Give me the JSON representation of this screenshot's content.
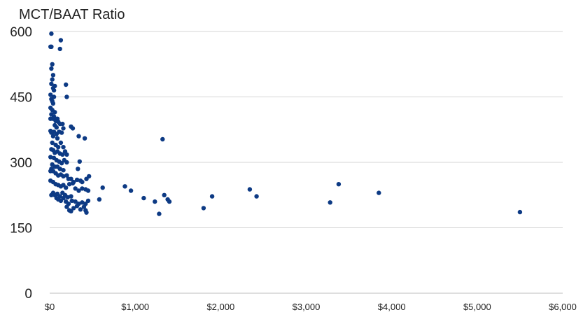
{
  "chart_data": {
    "type": "scatter",
    "title": "MCT/BAAT Ratio",
    "xlabel": "",
    "ylabel": "",
    "xlim": [
      0,
      6000
    ],
    "ylim": [
      0,
      600
    ],
    "x_ticks": [
      0,
      1000,
      2000,
      3000,
      4000,
      5000,
      6000
    ],
    "x_tick_labels": [
      "$0",
      "$1,000",
      "$2,000",
      "$3,000",
      "$4,000",
      "$5,000",
      "$6,000"
    ],
    "y_ticks": [
      0,
      150,
      300,
      450,
      600
    ],
    "y_tick_labels": [
      "0",
      "150",
      "300",
      "450",
      "600"
    ],
    "grid": "horizontal",
    "legend": "none",
    "marker_color": "#0d3a84",
    "series": [
      {
        "points": [
          [
            20,
            595
          ],
          [
            10,
            565
          ],
          [
            20,
            565
          ],
          [
            130,
            580
          ],
          [
            120,
            560
          ],
          [
            30,
            525
          ],
          [
            20,
            515
          ],
          [
            40,
            500
          ],
          [
            30,
            490
          ],
          [
            20,
            480
          ],
          [
            40,
            470
          ],
          [
            60,
            475
          ],
          [
            50,
            465
          ],
          [
            190,
            478
          ],
          [
            10,
            455
          ],
          [
            20,
            445
          ],
          [
            30,
            440
          ],
          [
            50,
            450
          ],
          [
            40,
            435
          ],
          [
            200,
            450
          ],
          [
            10,
            425
          ],
          [
            30,
            420
          ],
          [
            60,
            415
          ],
          [
            20,
            410
          ],
          [
            50,
            405
          ],
          [
            10,
            400
          ],
          [
            40,
            400
          ],
          [
            70,
            395
          ],
          [
            90,
            400
          ],
          [
            100,
            393
          ],
          [
            120,
            388
          ],
          [
            60,
            385
          ],
          [
            80,
            380
          ],
          [
            150,
            388
          ],
          [
            160,
            378
          ],
          [
            250,
            382
          ],
          [
            270,
            378
          ],
          [
            10,
            372
          ],
          [
            20,
            368
          ],
          [
            50,
            370
          ],
          [
            80,
            365
          ],
          [
            110,
            370
          ],
          [
            140,
            368
          ],
          [
            40,
            360
          ],
          [
            90,
            355
          ],
          [
            340,
            360
          ],
          [
            410,
            355
          ],
          [
            30,
            345
          ],
          [
            70,
            340
          ],
          [
            100,
            335
          ],
          [
            130,
            345
          ],
          [
            160,
            335
          ],
          [
            20,
            330
          ],
          [
            40,
            328
          ],
          [
            60,
            322
          ],
          [
            90,
            325
          ],
          [
            120,
            320
          ],
          [
            150,
            318
          ],
          [
            180,
            325
          ],
          [
            200,
            318
          ],
          [
            10,
            312
          ],
          [
            50,
            310
          ],
          [
            80,
            305
          ],
          [
            110,
            302
          ],
          [
            140,
            298
          ],
          [
            170,
            305
          ],
          [
            200,
            300
          ],
          [
            30,
            295
          ],
          [
            60,
            290
          ],
          [
            90,
            290
          ],
          [
            120,
            285
          ],
          [
            160,
            282
          ],
          [
            20,
            285
          ],
          [
            40,
            280
          ],
          [
            10,
            280
          ],
          [
            70,
            275
          ],
          [
            100,
            270
          ],
          [
            130,
            272
          ],
          [
            160,
            268
          ],
          [
            200,
            270
          ],
          [
            220,
            262
          ],
          [
            250,
            262
          ],
          [
            280,
            255
          ],
          [
            320,
            260
          ],
          [
            360,
            258
          ],
          [
            380,
            255
          ],
          [
            430,
            262
          ],
          [
            460,
            268
          ],
          [
            10,
            258
          ],
          [
            40,
            255
          ],
          [
            70,
            250
          ],
          [
            100,
            248
          ],
          [
            130,
            245
          ],
          [
            160,
            248
          ],
          [
            190,
            242
          ],
          [
            350,
            302
          ],
          [
            330,
            285
          ],
          [
            270,
            252
          ],
          [
            230,
            250
          ],
          [
            620,
            242
          ],
          [
            880,
            245
          ],
          [
            950,
            235
          ],
          [
            300,
            240
          ],
          [
            340,
            235
          ],
          [
            380,
            240
          ],
          [
            420,
            238
          ],
          [
            450,
            235
          ],
          [
            40,
            230
          ],
          [
            60,
            225
          ],
          [
            90,
            228
          ],
          [
            120,
            222
          ],
          [
            150,
            230
          ],
          [
            180,
            225
          ],
          [
            210,
            220
          ],
          [
            250,
            222
          ],
          [
            20,
            225
          ],
          [
            80,
            218
          ],
          [
            100,
            215
          ],
          [
            130,
            212
          ],
          [
            160,
            218
          ],
          [
            190,
            210
          ],
          [
            220,
            205
          ],
          [
            260,
            212
          ],
          [
            300,
            210
          ],
          [
            340,
            205
          ],
          [
            380,
            208
          ],
          [
            420,
            205
          ],
          [
            450,
            212
          ],
          [
            580,
            215
          ],
          [
            1100,
            218
          ],
          [
            1230,
            210
          ],
          [
            1340,
            225
          ],
          [
            1380,
            215
          ],
          [
            1400,
            210
          ],
          [
            1900,
            222
          ],
          [
            2340,
            238
          ],
          [
            2420,
            222
          ],
          [
            3280,
            208
          ],
          [
            3380,
            250
          ],
          [
            3850,
            230
          ],
          [
            200,
            198
          ],
          [
            230,
            190
          ],
          [
            250,
            188
          ],
          [
            280,
            195
          ],
          [
            320,
            200
          ],
          [
            360,
            192
          ],
          [
            400,
            198
          ],
          [
            420,
            190
          ],
          [
            430,
            185
          ],
          [
            1280,
            182
          ],
          [
            1800,
            195
          ],
          [
            5500,
            186
          ],
          [
            1320,
            353
          ]
        ]
      }
    ]
  }
}
